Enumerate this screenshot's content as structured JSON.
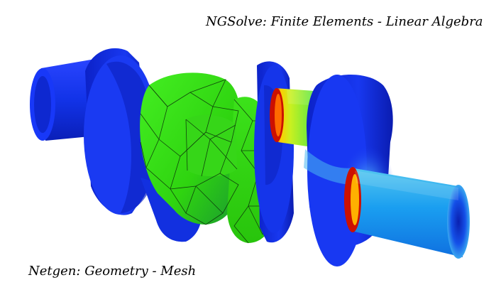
{
  "captions": {
    "top": "NGSolve: Finite Elements - Linear Algebra",
    "bottom": "Netgen: Geometry - Mesh"
  },
  "colors": {
    "background": "#ffffff",
    "shaft_blue": "#1030e0",
    "mesh_green": "#33dd11",
    "cyan": "#2aa8f0",
    "hot_red": "#cc1000",
    "mesh_lines": "#0a2a0a"
  }
}
